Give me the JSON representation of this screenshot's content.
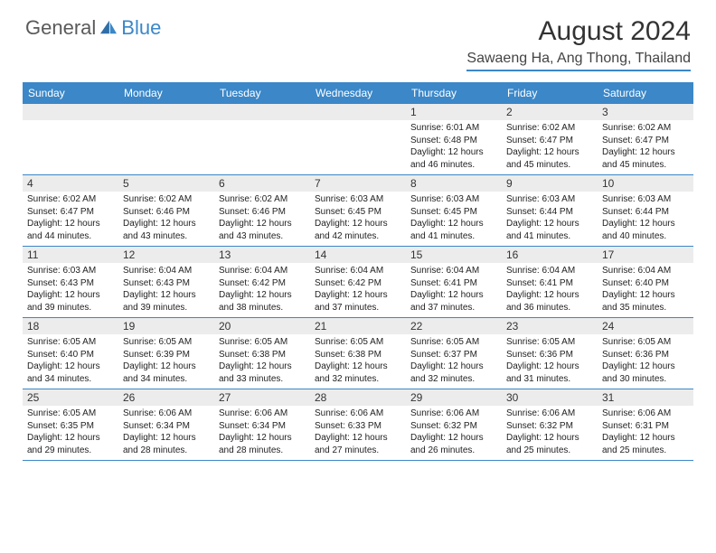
{
  "brand": {
    "part1": "General",
    "part2": "Blue"
  },
  "title": "August 2024",
  "location": "Sawaeng Ha, Ang Thong, Thailand",
  "colors": {
    "accent": "#3b87c8",
    "headerBg": "#3b87c8",
    "numBg": "#ececec"
  },
  "dayNames": [
    "Sunday",
    "Monday",
    "Tuesday",
    "Wednesday",
    "Thursday",
    "Friday",
    "Saturday"
  ],
  "weeks": [
    [
      {
        "n": "",
        "sr": "",
        "ss": "",
        "dl": ""
      },
      {
        "n": "",
        "sr": "",
        "ss": "",
        "dl": ""
      },
      {
        "n": "",
        "sr": "",
        "ss": "",
        "dl": ""
      },
      {
        "n": "",
        "sr": "",
        "ss": "",
        "dl": ""
      },
      {
        "n": "1",
        "sr": "Sunrise: 6:01 AM",
        "ss": "Sunset: 6:48 PM",
        "dl": "Daylight: 12 hours and 46 minutes."
      },
      {
        "n": "2",
        "sr": "Sunrise: 6:02 AM",
        "ss": "Sunset: 6:47 PM",
        "dl": "Daylight: 12 hours and 45 minutes."
      },
      {
        "n": "3",
        "sr": "Sunrise: 6:02 AM",
        "ss": "Sunset: 6:47 PM",
        "dl": "Daylight: 12 hours and 45 minutes."
      }
    ],
    [
      {
        "n": "4",
        "sr": "Sunrise: 6:02 AM",
        "ss": "Sunset: 6:47 PM",
        "dl": "Daylight: 12 hours and 44 minutes."
      },
      {
        "n": "5",
        "sr": "Sunrise: 6:02 AM",
        "ss": "Sunset: 6:46 PM",
        "dl": "Daylight: 12 hours and 43 minutes."
      },
      {
        "n": "6",
        "sr": "Sunrise: 6:02 AM",
        "ss": "Sunset: 6:46 PM",
        "dl": "Daylight: 12 hours and 43 minutes."
      },
      {
        "n": "7",
        "sr": "Sunrise: 6:03 AM",
        "ss": "Sunset: 6:45 PM",
        "dl": "Daylight: 12 hours and 42 minutes."
      },
      {
        "n": "8",
        "sr": "Sunrise: 6:03 AM",
        "ss": "Sunset: 6:45 PM",
        "dl": "Daylight: 12 hours and 41 minutes."
      },
      {
        "n": "9",
        "sr": "Sunrise: 6:03 AM",
        "ss": "Sunset: 6:44 PM",
        "dl": "Daylight: 12 hours and 41 minutes."
      },
      {
        "n": "10",
        "sr": "Sunrise: 6:03 AM",
        "ss": "Sunset: 6:44 PM",
        "dl": "Daylight: 12 hours and 40 minutes."
      }
    ],
    [
      {
        "n": "11",
        "sr": "Sunrise: 6:03 AM",
        "ss": "Sunset: 6:43 PM",
        "dl": "Daylight: 12 hours and 39 minutes."
      },
      {
        "n": "12",
        "sr": "Sunrise: 6:04 AM",
        "ss": "Sunset: 6:43 PM",
        "dl": "Daylight: 12 hours and 39 minutes."
      },
      {
        "n": "13",
        "sr": "Sunrise: 6:04 AM",
        "ss": "Sunset: 6:42 PM",
        "dl": "Daylight: 12 hours and 38 minutes."
      },
      {
        "n": "14",
        "sr": "Sunrise: 6:04 AM",
        "ss": "Sunset: 6:42 PM",
        "dl": "Daylight: 12 hours and 37 minutes."
      },
      {
        "n": "15",
        "sr": "Sunrise: 6:04 AM",
        "ss": "Sunset: 6:41 PM",
        "dl": "Daylight: 12 hours and 37 minutes."
      },
      {
        "n": "16",
        "sr": "Sunrise: 6:04 AM",
        "ss": "Sunset: 6:41 PM",
        "dl": "Daylight: 12 hours and 36 minutes."
      },
      {
        "n": "17",
        "sr": "Sunrise: 6:04 AM",
        "ss": "Sunset: 6:40 PM",
        "dl": "Daylight: 12 hours and 35 minutes."
      }
    ],
    [
      {
        "n": "18",
        "sr": "Sunrise: 6:05 AM",
        "ss": "Sunset: 6:40 PM",
        "dl": "Daylight: 12 hours and 34 minutes."
      },
      {
        "n": "19",
        "sr": "Sunrise: 6:05 AM",
        "ss": "Sunset: 6:39 PM",
        "dl": "Daylight: 12 hours and 34 minutes."
      },
      {
        "n": "20",
        "sr": "Sunrise: 6:05 AM",
        "ss": "Sunset: 6:38 PM",
        "dl": "Daylight: 12 hours and 33 minutes."
      },
      {
        "n": "21",
        "sr": "Sunrise: 6:05 AM",
        "ss": "Sunset: 6:38 PM",
        "dl": "Daylight: 12 hours and 32 minutes."
      },
      {
        "n": "22",
        "sr": "Sunrise: 6:05 AM",
        "ss": "Sunset: 6:37 PM",
        "dl": "Daylight: 12 hours and 32 minutes."
      },
      {
        "n": "23",
        "sr": "Sunrise: 6:05 AM",
        "ss": "Sunset: 6:36 PM",
        "dl": "Daylight: 12 hours and 31 minutes."
      },
      {
        "n": "24",
        "sr": "Sunrise: 6:05 AM",
        "ss": "Sunset: 6:36 PM",
        "dl": "Daylight: 12 hours and 30 minutes."
      }
    ],
    [
      {
        "n": "25",
        "sr": "Sunrise: 6:05 AM",
        "ss": "Sunset: 6:35 PM",
        "dl": "Daylight: 12 hours and 29 minutes."
      },
      {
        "n": "26",
        "sr": "Sunrise: 6:06 AM",
        "ss": "Sunset: 6:34 PM",
        "dl": "Daylight: 12 hours and 28 minutes."
      },
      {
        "n": "27",
        "sr": "Sunrise: 6:06 AM",
        "ss": "Sunset: 6:34 PM",
        "dl": "Daylight: 12 hours and 28 minutes."
      },
      {
        "n": "28",
        "sr": "Sunrise: 6:06 AM",
        "ss": "Sunset: 6:33 PM",
        "dl": "Daylight: 12 hours and 27 minutes."
      },
      {
        "n": "29",
        "sr": "Sunrise: 6:06 AM",
        "ss": "Sunset: 6:32 PM",
        "dl": "Daylight: 12 hours and 26 minutes."
      },
      {
        "n": "30",
        "sr": "Sunrise: 6:06 AM",
        "ss": "Sunset: 6:32 PM",
        "dl": "Daylight: 12 hours and 25 minutes."
      },
      {
        "n": "31",
        "sr": "Sunrise: 6:06 AM",
        "ss": "Sunset: 6:31 PM",
        "dl": "Daylight: 12 hours and 25 minutes."
      }
    ]
  ]
}
